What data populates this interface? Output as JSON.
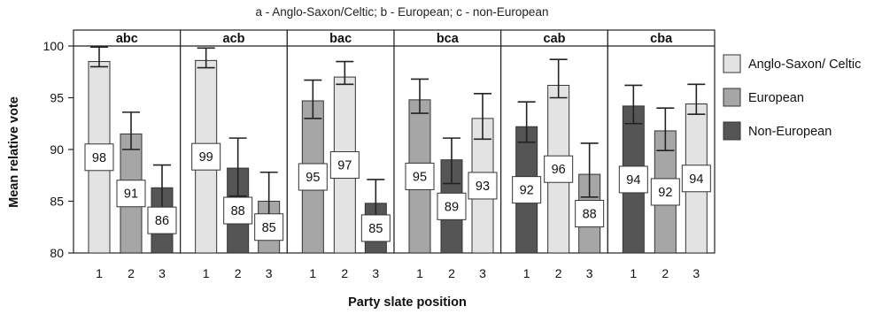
{
  "chart_data": {
    "type": "bar",
    "subtitle": "a - Anglo-Saxon/Celtic; b - European; c - non-European",
    "xlabel": "Party slate position",
    "ylabel": "Mean relative vote",
    "ylim": [
      80,
      100
    ],
    "yticks": [
      80,
      85,
      90,
      95,
      100
    ],
    "grid": false,
    "legend_position": "right",
    "categories": [
      "1",
      "2",
      "3"
    ],
    "series": [
      {
        "name": "Anglo-Saxon/ Celtic",
        "color": "#e3e3e3"
      },
      {
        "name": "European",
        "color": "#a6a6a6"
      },
      {
        "name": "Non-European",
        "color": "#555555"
      }
    ],
    "panels": [
      {
        "title": "abc",
        "bars": [
          {
            "position": "1",
            "group": "Anglo-Saxon/ Celtic",
            "value": 98.5,
            "label": "98",
            "err_low": 98.0,
            "err_high": 99.9
          },
          {
            "position": "2",
            "group": "European",
            "value": 91.5,
            "label": "91",
            "err_low": 90.0,
            "err_high": 93.6
          },
          {
            "position": "3",
            "group": "Non-European",
            "value": 86.3,
            "label": "86",
            "err_low": 84.3,
            "err_high": 88.5
          }
        ]
      },
      {
        "title": "acb",
        "bars": [
          {
            "position": "1",
            "group": "Anglo-Saxon/ Celtic",
            "value": 98.6,
            "label": "99",
            "err_low": 97.9,
            "err_high": 99.8
          },
          {
            "position": "2",
            "group": "Non-European",
            "value": 88.2,
            "label": "88",
            "err_low": 85.5,
            "err_high": 91.1
          },
          {
            "position": "3",
            "group": "European",
            "value": 85.0,
            "label": "85",
            "err_low": 82.5,
            "err_high": 87.8
          }
        ]
      },
      {
        "title": "bac",
        "bars": [
          {
            "position": "1",
            "group": "European",
            "value": 94.7,
            "label": "95",
            "err_low": 93.0,
            "err_high": 96.7
          },
          {
            "position": "2",
            "group": "Anglo-Saxon/ Celtic",
            "value": 97.0,
            "label": "97",
            "err_low": 96.3,
            "err_high": 98.5
          },
          {
            "position": "3",
            "group": "Non-European",
            "value": 84.8,
            "label": "85",
            "err_low": 82.8,
            "err_high": 87.1
          }
        ]
      },
      {
        "title": "bca",
        "bars": [
          {
            "position": "1",
            "group": "European",
            "value": 94.8,
            "label": "95",
            "err_low": 93.5,
            "err_high": 96.8
          },
          {
            "position": "2",
            "group": "Non-European",
            "value": 89.0,
            "label": "89",
            "err_low": 86.7,
            "err_high": 91.1
          },
          {
            "position": "3",
            "group": "Anglo-Saxon/ Celtic",
            "value": 93.0,
            "label": "93",
            "err_low": 91.0,
            "err_high": 95.4
          }
        ]
      },
      {
        "title": "cab",
        "bars": [
          {
            "position": "1",
            "group": "Non-European",
            "value": 92.2,
            "label": "92",
            "err_low": 90.7,
            "err_high": 94.6
          },
          {
            "position": "2",
            "group": "Anglo-Saxon/ Celtic",
            "value": 96.2,
            "label": "96",
            "err_low": 95.0,
            "err_high": 98.7
          },
          {
            "position": "3",
            "group": "European",
            "value": 87.6,
            "label": "88",
            "err_low": 85.4,
            "err_high": 90.6
          }
        ]
      },
      {
        "title": "cba",
        "bars": [
          {
            "position": "1",
            "group": "Non-European",
            "value": 94.2,
            "label": "94",
            "err_low": 92.5,
            "err_high": 96.2
          },
          {
            "position": "2",
            "group": "European",
            "value": 91.8,
            "label": "92",
            "err_low": 89.9,
            "err_high": 94.0
          },
          {
            "position": "3",
            "group": "Anglo-Saxon/ Celtic",
            "value": 94.4,
            "label": "94",
            "err_low": 93.4,
            "err_high": 96.3
          }
        ]
      }
    ]
  }
}
